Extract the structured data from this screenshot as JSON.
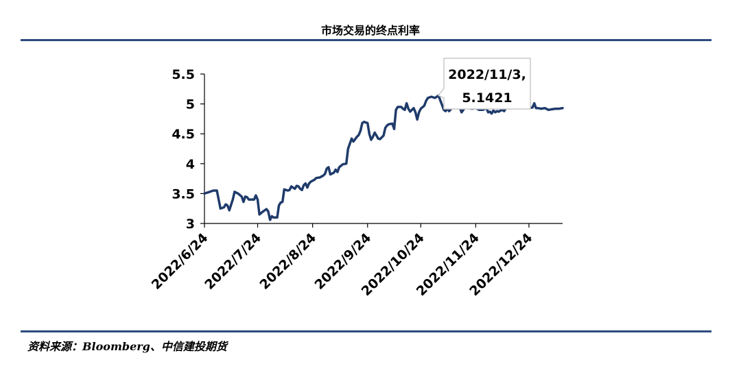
{
  "title": "市场交易的终点利率",
  "source": "资料来源：Bloomberg、中信建投期货",
  "colors": {
    "line": "#1f3b6b",
    "rule": "#2a4a7d"
  },
  "chart_data": {
    "type": "line",
    "title": "市场交易的终点利率",
    "xlabel": "",
    "ylabel": "",
    "ylim": [
      3,
      5.5
    ],
    "y_ticks": [
      "3",
      "3.5",
      "4",
      "4.5",
      "5",
      "5.5"
    ],
    "x_range": [
      "2022-06-24",
      "2023-01-12"
    ],
    "x_ticks": [
      {
        "date": "2022-06-24",
        "label": "2022/6/24"
      },
      {
        "date": "2022-07-24",
        "label": "2022/7/24"
      },
      {
        "date": "2022-08-24",
        "label": "2022/8/24"
      },
      {
        "date": "2022-09-24",
        "label": "2022/9/24"
      },
      {
        "date": "2022-10-24",
        "label": "2022/10/24"
      },
      {
        "date": "2022-11-24",
        "label": "2022/11/24"
      },
      {
        "date": "2022-12-24",
        "label": "2022/12/24"
      }
    ],
    "annotation": {
      "lines": [
        "2022/11/3,",
        "5.1421"
      ],
      "date": "2022-11-03",
      "value": 5.1421
    },
    "series": [
      {
        "points": [
          [
            "2022-06-24",
            3.5
          ],
          [
            "2022-06-27",
            3.53
          ],
          [
            "2022-06-29",
            3.55
          ],
          [
            "2022-07-01",
            3.55
          ],
          [
            "2022-07-03",
            3.25
          ],
          [
            "2022-07-05",
            3.27
          ],
          [
            "2022-07-06",
            3.32
          ],
          [
            "2022-07-07",
            3.3
          ],
          [
            "2022-07-08",
            3.22
          ],
          [
            "2022-07-10",
            3.4
          ],
          [
            "2022-07-11",
            3.53
          ],
          [
            "2022-07-13",
            3.5
          ],
          [
            "2022-07-15",
            3.45
          ],
          [
            "2022-07-16",
            3.36
          ],
          [
            "2022-07-17",
            3.45
          ],
          [
            "2022-07-18",
            3.44
          ],
          [
            "2022-07-19",
            3.4
          ],
          [
            "2022-07-21",
            3.4
          ],
          [
            "2022-07-22",
            3.4
          ],
          [
            "2022-07-23",
            3.47
          ],
          [
            "2022-07-24",
            3.4
          ],
          [
            "2022-07-25",
            3.15
          ],
          [
            "2022-07-27",
            3.2
          ],
          [
            "2022-07-29",
            3.24
          ],
          [
            "2022-07-30",
            3.2
          ],
          [
            "2022-07-31",
            3.06
          ],
          [
            "2022-08-01",
            3.12
          ],
          [
            "2022-08-02",
            3.1
          ],
          [
            "2022-08-04",
            3.1
          ],
          [
            "2022-08-05",
            3.3
          ],
          [
            "2022-08-06",
            3.35
          ],
          [
            "2022-08-07",
            3.36
          ],
          [
            "2022-08-08",
            3.57
          ],
          [
            "2022-08-10",
            3.55
          ],
          [
            "2022-08-11",
            3.56
          ],
          [
            "2022-08-12",
            3.62
          ],
          [
            "2022-08-13",
            3.6
          ],
          [
            "2022-08-14",
            3.58
          ],
          [
            "2022-08-15",
            3.63
          ],
          [
            "2022-08-16",
            3.62
          ],
          [
            "2022-08-17",
            3.58
          ],
          [
            "2022-08-18",
            3.56
          ],
          [
            "2022-08-19",
            3.64
          ],
          [
            "2022-08-20",
            3.67
          ],
          [
            "2022-08-21",
            3.6
          ],
          [
            "2022-08-22",
            3.67
          ],
          [
            "2022-08-23",
            3.7
          ],
          [
            "2022-08-25",
            3.73
          ],
          [
            "2022-08-26",
            3.76
          ],
          [
            "2022-08-28",
            3.77
          ],
          [
            "2022-08-30",
            3.8
          ],
          [
            "2022-08-31",
            3.83
          ],
          [
            "2022-09-01",
            3.92
          ],
          [
            "2022-09-02",
            3.94
          ],
          [
            "2022-09-03",
            3.82
          ],
          [
            "2022-09-05",
            3.85
          ],
          [
            "2022-09-06",
            3.9
          ],
          [
            "2022-09-07",
            3.86
          ],
          [
            "2022-09-08",
            3.94
          ],
          [
            "2022-09-10",
            3.99
          ],
          [
            "2022-09-12",
            4.0
          ],
          [
            "2022-09-13",
            4.25
          ],
          [
            "2022-09-15",
            4.42
          ],
          [
            "2022-09-16",
            4.37
          ],
          [
            "2022-09-18",
            4.45
          ],
          [
            "2022-09-19",
            4.48
          ],
          [
            "2022-09-20",
            4.55
          ],
          [
            "2022-09-21",
            4.68
          ],
          [
            "2022-09-22",
            4.7
          ],
          [
            "2022-09-24",
            4.68
          ],
          [
            "2022-09-25",
            4.5
          ],
          [
            "2022-09-26",
            4.4
          ],
          [
            "2022-09-27",
            4.45
          ],
          [
            "2022-09-28",
            4.52
          ],
          [
            "2022-09-29",
            4.47
          ],
          [
            "2022-09-30",
            4.42
          ],
          [
            "2022-10-01",
            4.41
          ],
          [
            "2022-10-03",
            4.47
          ],
          [
            "2022-10-04",
            4.6
          ],
          [
            "2022-10-05",
            4.64
          ],
          [
            "2022-10-06",
            4.66
          ],
          [
            "2022-10-08",
            4.67
          ],
          [
            "2022-10-09",
            4.58
          ],
          [
            "2022-10-10",
            4.9
          ],
          [
            "2022-10-11",
            4.95
          ],
          [
            "2022-10-13",
            4.95
          ],
          [
            "2022-10-14",
            4.92
          ],
          [
            "2022-10-15",
            4.9
          ],
          [
            "2022-10-16",
            5.01
          ],
          [
            "2022-10-17",
            4.92
          ],
          [
            "2022-10-18",
            4.87
          ],
          [
            "2022-10-19",
            4.9
          ],
          [
            "2022-10-20",
            4.93
          ],
          [
            "2022-10-21",
            4.86
          ],
          [
            "2022-10-22",
            4.74
          ],
          [
            "2022-10-23",
            4.86
          ],
          [
            "2022-10-24",
            4.92
          ],
          [
            "2022-10-26",
            4.97
          ],
          [
            "2022-10-27",
            5.05
          ],
          [
            "2022-10-28",
            5.1
          ],
          [
            "2022-10-30",
            5.12
          ],
          [
            "2022-11-01",
            5.1
          ],
          [
            "2022-11-03",
            5.14
          ],
          [
            "2022-11-05",
            4.98
          ],
          [
            "2022-11-06",
            4.9
          ],
          [
            "2022-11-07",
            4.88
          ],
          [
            "2022-11-08",
            4.92
          ],
          [
            "2022-11-09",
            4.88
          ],
          [
            "2022-11-11",
            4.95
          ],
          [
            "2022-11-13",
            4.98
          ],
          [
            "2022-11-15",
            4.94
          ],
          [
            "2022-11-16",
            4.86
          ],
          [
            "2022-11-17",
            4.9
          ],
          [
            "2022-11-18",
            4.95
          ],
          [
            "2022-11-20",
            4.93
          ],
          [
            "2022-11-22",
            4.92
          ],
          [
            "2022-11-24",
            4.93
          ],
          [
            "2022-11-26",
            4.9
          ],
          [
            "2022-11-28",
            4.9
          ],
          [
            "2022-11-30",
            4.93
          ],
          [
            "2022-12-01",
            4.86
          ],
          [
            "2022-12-02",
            4.87
          ],
          [
            "2022-12-03",
            4.84
          ],
          [
            "2022-12-04",
            4.89
          ],
          [
            "2022-12-05",
            4.86
          ],
          [
            "2022-12-06",
            4.88
          ],
          [
            "2022-12-07",
            4.87
          ],
          [
            "2022-12-08",
            4.89
          ],
          [
            "2022-12-09",
            4.9
          ],
          [
            "2022-12-10",
            4.88
          ],
          [
            "2022-12-11",
            4.93
          ],
          [
            "2022-12-12",
            4.93
          ],
          [
            "2022-12-13",
            4.98
          ],
          [
            "2022-12-14",
            5.0
          ],
          [
            "2022-12-15",
            4.93
          ],
          [
            "2022-12-16",
            4.96
          ],
          [
            "2022-12-18",
            4.96
          ],
          [
            "2022-12-20",
            4.95
          ],
          [
            "2022-12-22",
            4.96
          ],
          [
            "2022-12-23",
            4.98
          ],
          [
            "2022-12-24",
            4.93
          ],
          [
            "2022-12-26",
            4.94
          ],
          [
            "2022-12-27",
            5.01
          ],
          [
            "2022-12-28",
            4.93
          ],
          [
            "2022-12-29",
            4.93
          ],
          [
            "2022-12-31",
            4.92
          ],
          [
            "2023-01-02",
            4.93
          ],
          [
            "2023-01-04",
            4.9
          ],
          [
            "2023-01-06",
            4.91
          ],
          [
            "2023-01-08",
            4.92
          ],
          [
            "2023-01-10",
            4.92
          ],
          [
            "2023-01-12",
            4.93
          ]
        ]
      }
    ]
  }
}
